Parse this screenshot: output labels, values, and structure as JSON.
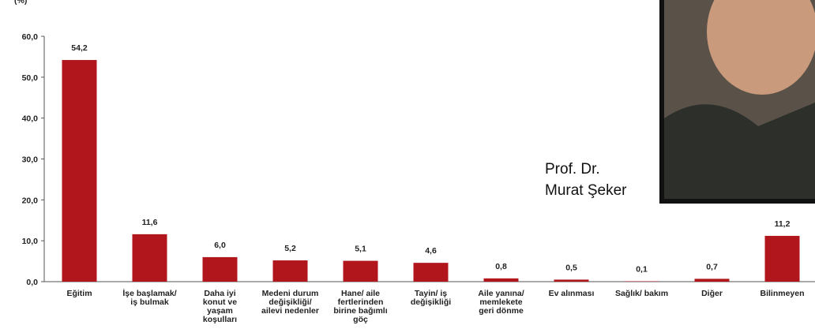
{
  "chart_data": {
    "type": "bar",
    "ylabel": "(%)",
    "categories": [
      "Eğitim",
      "İşe başlamak/\niş bulmak",
      "Daha iyi\nkonut ve\nyaşam\nkoşulları",
      "Medeni durum\ndeğişikliği/\nailevi nedenler",
      "Hane/ aile\nfertlerinden\nbirine bağımlı\ngöç",
      "Tayin/ iş\ndeğişikliği",
      "Aile yanına/\nmemlekete\ngeri dönme",
      "Ev alınması",
      "Sağlık/ bakım",
      "Diğer",
      "Bilinmeyen"
    ],
    "values": [
      54.2,
      11.6,
      6.0,
      5.2,
      5.1,
      4.6,
      0.8,
      0.5,
      0.1,
      0.7,
      11.2
    ],
    "value_labels": [
      "54,2",
      "11,6",
      "6,0",
      "5,2",
      "5,1",
      "4,6",
      "0,8",
      "0,5",
      "0,1",
      "0,7",
      "11,2"
    ],
    "color": "#b0161c",
    "ylim": [
      0,
      60
    ],
    "yticks": [
      {
        "value": 0,
        "label": "0,0"
      },
      {
        "value": 10,
        "label": "10,0"
      },
      {
        "value": 20,
        "label": "20,0"
      },
      {
        "value": 30,
        "label": "30,0"
      },
      {
        "value": 40,
        "label": "40,0"
      },
      {
        "value": 50,
        "label": "50,0"
      },
      {
        "value": 60,
        "label": "60,0"
      }
    ],
    "annotation": [
      "Prof. Dr.",
      "Murat Şeker"
    ]
  }
}
